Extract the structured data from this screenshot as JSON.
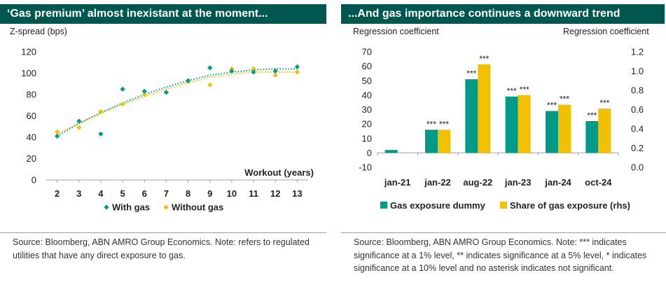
{
  "left": {
    "title": "‘Gas premium’ almost inexistant at the moment...",
    "source": "Source: Bloomberg, ABN AMRO Group Economics. Note: refers to regulated utilities that have any direct exposure to gas.",
    "colors": {
      "with_gas": "#009a88",
      "without_gas": "#f3c000"
    }
  },
  "right": {
    "title": "...And gas importance continues a downward trend",
    "source": "Source: Bloomberg, ABN AMRO Group Economics. Note: *** indicates significance at a 1% level, ** indicates significance at a 5% level, * indicates significance at a 10% level and no asterisk indicates not significant.",
    "colors": {
      "dummy": "#009a88",
      "share": "#f3c000"
    }
  },
  "chart_data": [
    {
      "type": "scatter",
      "title": "‘Gas premium’ almost inexistant at the moment...",
      "ylabel": "Z-spread (bps)",
      "xlabel": "Workout (years)",
      "ylim": [
        0,
        120
      ],
      "yticks": [
        0,
        20,
        40,
        60,
        80,
        100,
        120
      ],
      "xticks": [
        2,
        3,
        4,
        5,
        6,
        7,
        8,
        9,
        10,
        11,
        12,
        13
      ],
      "series": [
        {
          "name": "With gas",
          "marker": "diamond",
          "trendline": "dotted",
          "x": [
            2,
            3,
            4,
            5,
            6,
            7,
            8,
            9,
            10,
            11,
            12,
            13
          ],
          "values": [
            41,
            55,
            43,
            85,
            83,
            82,
            93,
            105,
            102,
            101,
            102,
            106
          ]
        },
        {
          "name": "Without gas",
          "marker": "diamond",
          "trendline": "dotted",
          "x": [
            2,
            3,
            4,
            5,
            6,
            7,
            8,
            9,
            10,
            11,
            12,
            13
          ],
          "values": [
            45,
            49,
            64,
            71,
            80,
            82,
            92,
            89,
            104,
            104,
            98,
            101
          ]
        }
      ],
      "trend": {
        "With gas": [
          [
            2,
            41
          ],
          [
            3,
            53
          ],
          [
            4,
            63
          ],
          [
            5,
            72
          ],
          [
            6,
            80
          ],
          [
            7,
            87
          ],
          [
            8,
            93
          ],
          [
            9,
            98
          ],
          [
            10,
            101
          ],
          [
            11,
            103
          ],
          [
            12,
            104
          ],
          [
            13,
            104
          ]
        ],
        "Without gas": [
          [
            2,
            43
          ],
          [
            3,
            53
          ],
          [
            4,
            62
          ],
          [
            5,
            71
          ],
          [
            6,
            78
          ],
          [
            7,
            85
          ],
          [
            8,
            91
          ],
          [
            9,
            96
          ],
          [
            10,
            99
          ],
          [
            11,
            101
          ],
          [
            12,
            101
          ],
          [
            13,
            101
          ]
        ]
      },
      "legend": "bottom"
    },
    {
      "type": "bar",
      "title": "...And gas importance continues a downward trend",
      "ylabel_left": "Regression coefficient",
      "ylabel_right": "Regression coefficient",
      "ylim_left": [
        -10,
        70
      ],
      "yticks_left": [
        -10,
        0,
        10,
        20,
        30,
        40,
        50,
        60,
        70
      ],
      "ylim_right": [
        0.0,
        1.2
      ],
      "yticks_right": [
        "0.0",
        "0.2",
        "0.4",
        "0.6",
        "0.8",
        "1.0",
        "1.2"
      ],
      "categories": [
        "jan-21",
        "jan-22",
        "aug-22",
        "jan-23",
        "jan-24",
        "oct-24"
      ],
      "series": [
        {
          "name": "Gas exposure dummy",
          "axis": "left",
          "values": [
            2,
            16,
            51,
            39,
            29,
            22
          ],
          "significance": [
            "",
            "***",
            "***",
            "***",
            "***",
            "***"
          ]
        },
        {
          "name": "Share of gas exposure (rhs)",
          "axis": "right",
          "values": [
            null,
            0.39,
            1.07,
            0.75,
            0.65,
            0.61
          ],
          "significance": [
            "",
            "***",
            "***",
            "***",
            "***",
            "***"
          ]
        }
      ],
      "legend": "bottom"
    }
  ]
}
